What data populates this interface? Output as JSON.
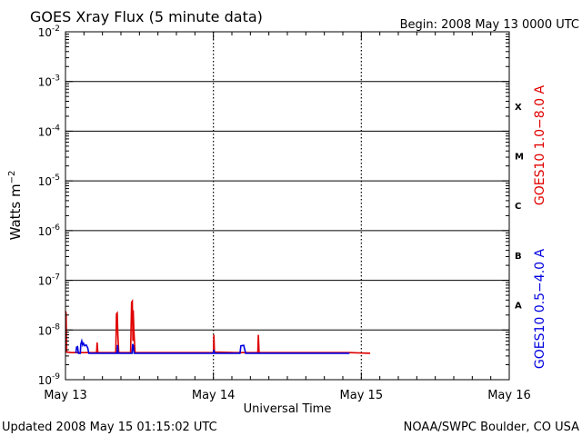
{
  "header": {
    "title": "GOES Xray Flux (5 minute data)",
    "begin": "Begin:  2008 May 13 0000 UTC"
  },
  "footer": {
    "updated": "Updated 2008 May 15 01:15:02 UTC",
    "source": "NOAA/SWPC Boulder, CO USA"
  },
  "colors": {
    "long_channel": "#e00000",
    "short_channel": "#0000e0",
    "axis": "#000000"
  },
  "chart_data": {
    "type": "line",
    "title": "GOES Xray Flux (5 minute data)",
    "xlabel": "Universal Time",
    "ylabel": "Watts m-2",
    "y_scale": "log",
    "ylim": [
      1e-09,
      0.01
    ],
    "xlim_days": [
      0,
      3
    ],
    "x_ticks": [
      {
        "day": 0,
        "label": "May 13"
      },
      {
        "day": 1,
        "label": "May 14"
      },
      {
        "day": 2,
        "label": "May 15"
      },
      {
        "day": 3,
        "label": "May 16"
      }
    ],
    "y_ticks": [
      {
        "value": 1e-09,
        "base": "10",
        "exp": "-9"
      },
      {
        "value": 1e-08,
        "base": "10",
        "exp": "-8"
      },
      {
        "value": 1e-07,
        "base": "10",
        "exp": "-7"
      },
      {
        "value": 1e-06,
        "base": "10",
        "exp": "-6"
      },
      {
        "value": 1e-05,
        "base": "10",
        "exp": "-5"
      },
      {
        "value": 0.0001,
        "base": "10",
        "exp": "-4"
      },
      {
        "value": 0.001,
        "base": "10",
        "exp": "-3"
      },
      {
        "value": 0.01,
        "base": "10",
        "exp": "-2"
      }
    ],
    "flare_classes": [
      {
        "label": "X",
        "value": 0.00032
      },
      {
        "label": "M",
        "value": 3.2e-05
      },
      {
        "label": "C",
        "value": 3.2e-06
      },
      {
        "label": "B",
        "value": 3.2e-07
      },
      {
        "label": "A",
        "value": 3.2e-08
      }
    ],
    "grid_horizontal": [
      1e-08,
      1e-07,
      1e-06,
      1e-05,
      0.0001,
      0.001
    ],
    "grid_vertical_days": [
      1,
      2
    ],
    "legend_placement": "right (vertical)",
    "series": [
      {
        "name": "GOES10 1.0−8.0 A",
        "color": "#e00000",
        "points": [
          [
            0.0,
            2.4e-08
          ],
          [
            0.004,
            2.2e-08
          ],
          [
            0.008,
            3.6e-09
          ],
          [
            0.04,
            3.5e-09
          ],
          [
            0.21,
            3.5e-09
          ],
          [
            0.214,
            5.6e-09
          ],
          [
            0.219,
            3.5e-09
          ],
          [
            0.34,
            3.5e-09
          ],
          [
            0.345,
            2.1e-08
          ],
          [
            0.35,
            2.2e-08
          ],
          [
            0.354,
            8e-09
          ],
          [
            0.36,
            3.5e-09
          ],
          [
            0.44,
            3.5e-09
          ],
          [
            0.447,
            3.6e-08
          ],
          [
            0.452,
            3.8e-08
          ],
          [
            0.456,
            6e-09
          ],
          [
            0.458,
            2.5e-08
          ],
          [
            0.462,
            1e-08
          ],
          [
            0.47,
            3.5e-09
          ],
          [
            0.93,
            3.5e-09
          ],
          [
            1.0,
            3.5e-09
          ],
          [
            1.003,
            8e-09
          ],
          [
            1.007,
            3.6e-09
          ],
          [
            1.15,
            3.5e-09
          ],
          [
            1.3,
            3.5e-09
          ],
          [
            1.304,
            8e-09
          ],
          [
            1.309,
            3.5e-09
          ],
          [
            1.92,
            3.5e-09
          ],
          [
            2.06,
            3.4e-09
          ]
        ]
      },
      {
        "name": "GOES10 0.5−4.0 A",
        "color": "#0000e0",
        "points": [
          [
            0.07,
            3.4e-09
          ],
          [
            0.075,
            4.5e-09
          ],
          [
            0.082,
            4.6e-09
          ],
          [
            0.087,
            3.4e-09
          ],
          [
            0.1,
            3.4e-09
          ],
          [
            0.104,
            5.2e-09
          ],
          [
            0.11,
            6e-09
          ],
          [
            0.116,
            5e-09
          ],
          [
            0.122,
            5.4e-09
          ],
          [
            0.13,
            4.8e-09
          ],
          [
            0.14,
            5e-09
          ],
          [
            0.15,
            4.4e-09
          ],
          [
            0.158,
            3.4e-09
          ],
          [
            0.349,
            3.4e-09
          ],
          [
            0.352,
            5e-09
          ],
          [
            0.356,
            3.4e-09
          ],
          [
            0.45,
            3.4e-09
          ],
          [
            0.454,
            5.2e-09
          ],
          [
            0.459,
            4.8e-09
          ],
          [
            0.464,
            3.4e-09
          ],
          [
            0.94,
            3.4e-09
          ],
          [
            1.0,
            3.4e-09
          ],
          [
            1.003,
            4e-09
          ],
          [
            1.007,
            3.4e-09
          ],
          [
            1.18,
            3.4e-09
          ],
          [
            1.186,
            4.8e-09
          ],
          [
            1.205,
            4.9e-09
          ],
          [
            1.212,
            4e-09
          ],
          [
            1.218,
            3.4e-09
          ],
          [
            1.92,
            3.4e-09
          ]
        ]
      }
    ]
  }
}
